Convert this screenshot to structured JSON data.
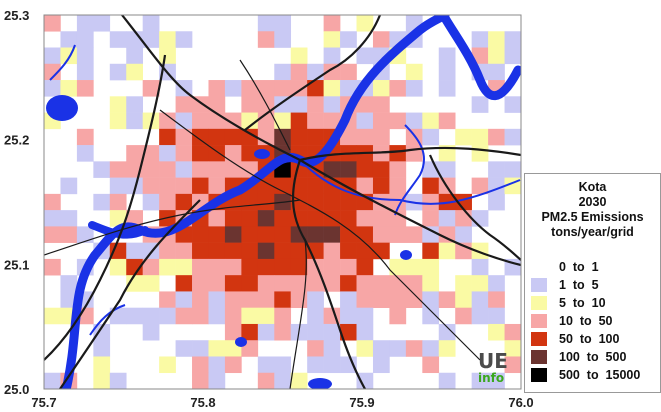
{
  "map": {
    "x_ticks": [
      "75.7",
      "75.8",
      "75.9",
      "76.0"
    ],
    "y_ticks": [
      "25.3",
      "25.2",
      "25.1",
      "25.0"
    ],
    "x_range": [
      75.7,
      76.0
    ],
    "y_range": [
      25.0,
      25.3
    ],
    "colors": {
      "water": "#1a32e6",
      "road": "#1a1a1a",
      "river_line": "#1a32e6"
    }
  },
  "legend": {
    "city": "Kota",
    "year": "2030",
    "pollutant": "PM2.5 Emissions",
    "units": "tons/year/grid",
    "classes": [
      {
        "label": "0  to  1",
        "color": "#ffffff"
      },
      {
        "label": "1  to  5",
        "color": "#c9c9f4"
      },
      {
        "label": "5  to  10",
        "color": "#fafaa4"
      },
      {
        "label": "10  to  50",
        "color": "#f7a6a6"
      },
      {
        "label": "50  to  100",
        "color": "#d23510"
      },
      {
        "label": "100  to  500",
        "color": "#6b3430"
      },
      {
        "label": "500  to  15000",
        "color": "#000000"
      }
    ]
  },
  "logo": {
    "line1": "UE",
    "line2": "info"
  }
}
